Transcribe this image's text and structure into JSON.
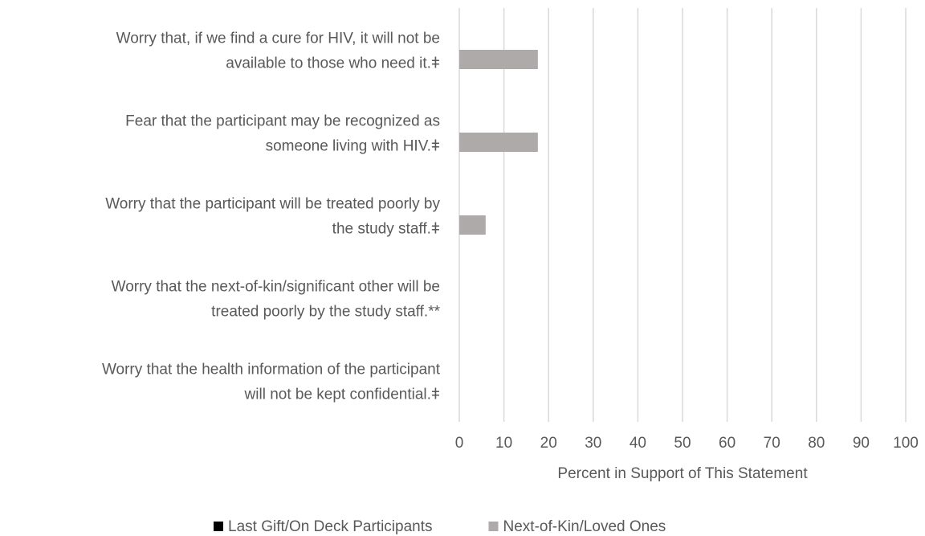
{
  "chart_data": {
    "type": "bar",
    "orientation": "horizontal",
    "categories": [
      [
        "Worry that, if we find a cure for HIV, it will not be",
        "available to those who need it.ǂ"
      ],
      [
        "Fear that the participant may be recognized as",
        "someone living with HIV.ǂ"
      ],
      [
        "Worry that the participant will be treated poorly by",
        "the study staff.ǂ"
      ],
      [
        "Worry that the next-of-kin/significant other will be",
        "treated poorly by the study staff.**"
      ],
      [
        "Worry that the health information of the participant",
        "will not be kept confidential.ǂ"
      ]
    ],
    "series": [
      {
        "name": "Last Gift/On Deck Participants",
        "color": "#000000",
        "values": [
          0,
          0,
          0,
          0,
          0
        ]
      },
      {
        "name": "Next-of-Kin/Loved Ones",
        "color": "#aeaaaa",
        "values": [
          17.6,
          17.6,
          5.9,
          0,
          0
        ]
      }
    ],
    "xlabel": "Percent in Support of This Statement",
    "xlim": [
      0,
      100
    ],
    "xticks": [
      0,
      10,
      20,
      30,
      40,
      50,
      60,
      70,
      80,
      90,
      100
    ],
    "grid": true,
    "legend": "bottom"
  }
}
